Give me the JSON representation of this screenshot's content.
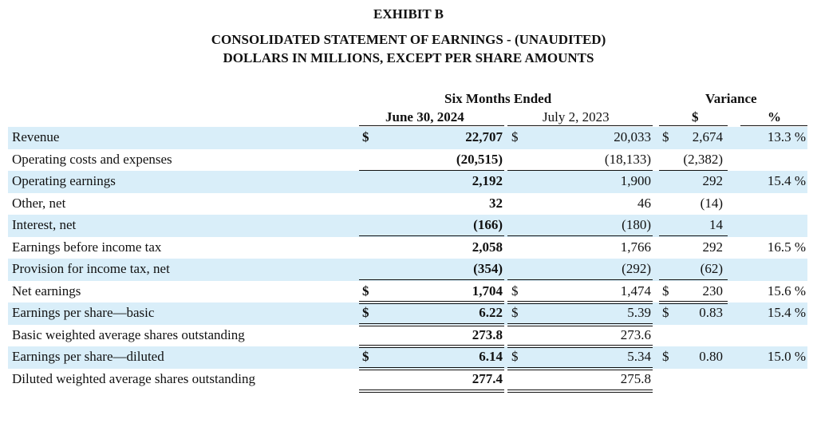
{
  "exhibit": "EXHIBIT B",
  "title_line1": "CONSOLIDATED STATEMENT OF EARNINGS - (UNAUDITED)",
  "title_line2": "DOLLARS IN MILLIONS, EXCEPT PER SHARE AMOUNTS",
  "headers": {
    "period_group": "Six Months Ended",
    "current_period": "June 30, 2024",
    "prior_period": "July 2, 2023",
    "variance_group": "Variance",
    "variance_dollar": "$",
    "variance_percent": "%"
  },
  "rows": [
    {
      "label": "Revenue",
      "cur_sym": "$",
      "current": "22,707",
      "prior_sym": "$",
      "prior": "20,033",
      "var_sym": "$",
      "variance": "2,674",
      "pct": "13.3 %"
    },
    {
      "label": "Operating costs and expenses",
      "cur_sym": "",
      "current": "(20,515)",
      "prior_sym": "",
      "prior": "(18,133)",
      "var_sym": "",
      "variance": "(2,382)",
      "pct": ""
    },
    {
      "label": "Operating earnings",
      "cur_sym": "",
      "current": "2,192",
      "prior_sym": "",
      "prior": "1,900",
      "var_sym": "",
      "variance": "292",
      "pct": "15.4 %"
    },
    {
      "label": "Other, net",
      "cur_sym": "",
      "current": "32",
      "prior_sym": "",
      "prior": "46",
      "var_sym": "",
      "variance": "(14)",
      "pct": ""
    },
    {
      "label": "Interest, net",
      "cur_sym": "",
      "current": "(166)",
      "prior_sym": "",
      "prior": "(180)",
      "var_sym": "",
      "variance": "14",
      "pct": ""
    },
    {
      "label": "Earnings before income tax",
      "cur_sym": "",
      "current": "2,058",
      "prior_sym": "",
      "prior": "1,766",
      "var_sym": "",
      "variance": "292",
      "pct": "16.5 %"
    },
    {
      "label": "Provision for income tax, net",
      "cur_sym": "",
      "current": "(354)",
      "prior_sym": "",
      "prior": "(292)",
      "var_sym": "",
      "variance": "(62)",
      "pct": ""
    },
    {
      "label": "Net earnings",
      "cur_sym": "$",
      "current": "1,704",
      "prior_sym": "$",
      "prior": "1,474",
      "var_sym": "$",
      "variance": "230",
      "pct": "15.6 %"
    },
    {
      "label": "Earnings per share—basic",
      "cur_sym": "$",
      "current": "6.22",
      "prior_sym": "$",
      "prior": "5.39",
      "var_sym": "$",
      "variance": "0.83",
      "pct": "15.4 %"
    },
    {
      "label": "Basic weighted average shares outstanding",
      "cur_sym": "",
      "current": "273.8",
      "prior_sym": "",
      "prior": "273.6",
      "var_sym": "",
      "variance": "",
      "pct": ""
    },
    {
      "label": "Earnings per share—diluted",
      "cur_sym": "$",
      "current": "6.14",
      "prior_sym": "$",
      "prior": "5.34",
      "var_sym": "$",
      "variance": "0.80",
      "pct": "15.0 %"
    },
    {
      "label": "Diluted weighted average shares outstanding",
      "cur_sym": "",
      "current": "277.4",
      "prior_sym": "",
      "prior": "275.8",
      "var_sym": "",
      "variance": "",
      "pct": ""
    }
  ]
}
